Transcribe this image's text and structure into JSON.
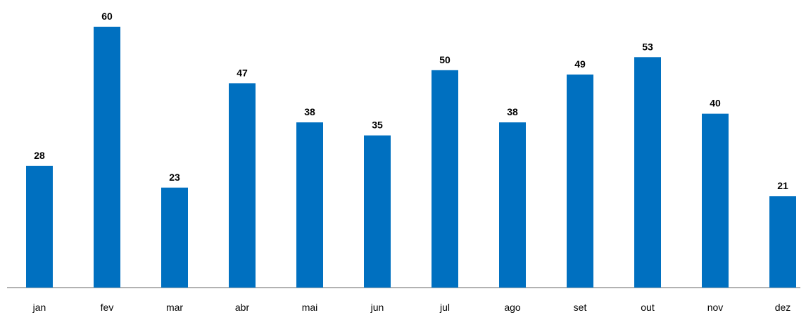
{
  "chart_data": {
    "type": "bar",
    "categories": [
      "jan",
      "fev",
      "mar",
      "abr",
      "mai",
      "jun",
      "jul",
      "ago",
      "set",
      "out",
      "nov",
      "dez"
    ],
    "values": [
      28,
      60,
      23,
      47,
      38,
      35,
      50,
      38,
      49,
      53,
      40,
      21
    ],
    "color": "#0070c0"
  }
}
